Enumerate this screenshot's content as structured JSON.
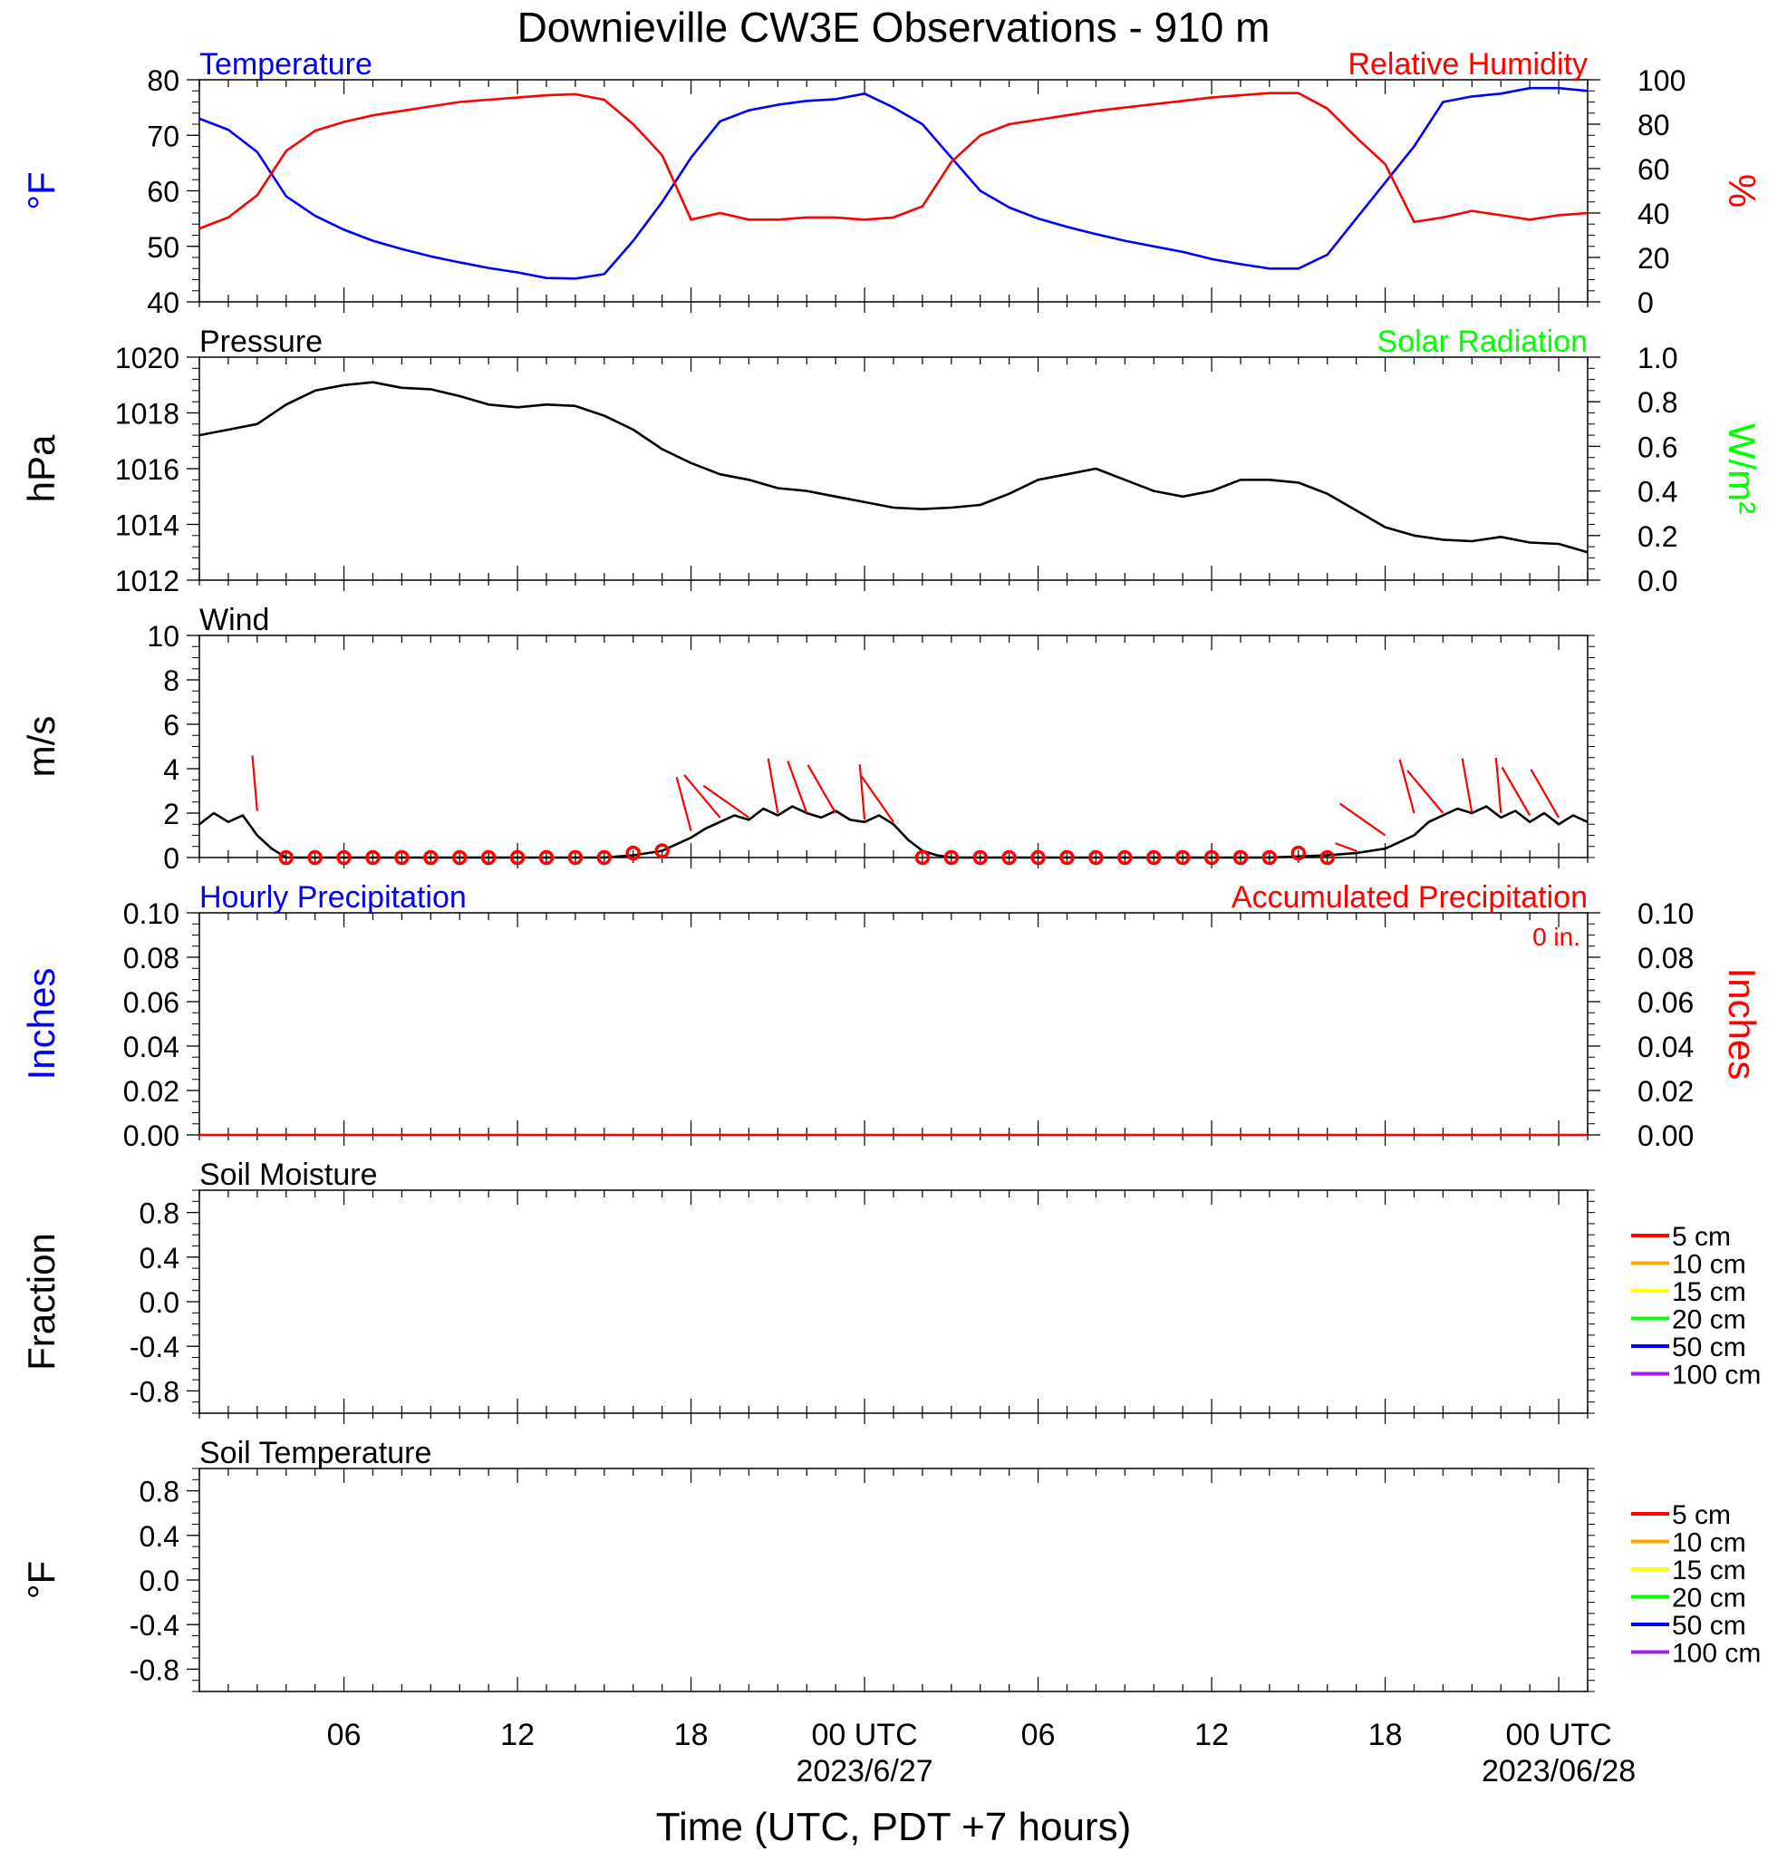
{
  "chart_data": {
    "type": "line",
    "title": "Downieville CW3E Observations - 910 m",
    "xlabel": "Time (UTC, PDT +7 hours)",
    "x_ticks": [
      {
        "hour": 6,
        "label": "06",
        "date": ""
      },
      {
        "hour": 12,
        "label": "12",
        "date": ""
      },
      {
        "hour": 18,
        "label": "18",
        "date": ""
      },
      {
        "hour": 24,
        "label": "00 UTC",
        "date": "2023/6/27"
      },
      {
        "hour": 30,
        "label": "06",
        "date": ""
      },
      {
        "hour": 36,
        "label": "12",
        "date": ""
      },
      {
        "hour": 42,
        "label": "18",
        "date": ""
      },
      {
        "hour": 48,
        "label": "00 UTC",
        "date": "2023/06/28"
      }
    ],
    "x_range_hours": [
      1,
      49
    ],
    "panels": [
      {
        "id": "temp_rh",
        "left_title": "Temperature",
        "left_title_color": "#0000ff",
        "right_title": "Relative Humidity",
        "right_title_color": "#ff0000",
        "ylabel": "°F",
        "ylabel_color": "#0000ff",
        "ylim": [
          40,
          80
        ],
        "yticks": [
          "40",
          "50",
          "60",
          "70",
          "80"
        ],
        "ylabel_right": "%",
        "ylabel_right_color": "#ff0000",
        "ylim_right": [
          0,
          100
        ],
        "yticks_right": [
          "0",
          "20",
          "40",
          "60",
          "80",
          "100"
        ],
        "series": [
          {
            "name": "Temperature",
            "color": "#0000ff",
            "axis": "left",
            "x": [
              1,
              2,
              3,
              4,
              5,
              6,
              7,
              8,
              9,
              10,
              11,
              12,
              13,
              14,
              15,
              16,
              17,
              18,
              19,
              20,
              21,
              22,
              23,
              24,
              25,
              26,
              27,
              28,
              29,
              30,
              31,
              32,
              33,
              34,
              35,
              36,
              37,
              38,
              39,
              40,
              41,
              42,
              43,
              44,
              45,
              46,
              47,
              48,
              49
            ],
            "y": [
              73,
              71,
              67,
              59,
              55.5,
              53,
              51,
              49.5,
              48.2,
              47.1,
              46.1,
              45.3,
              44.3,
              44.2,
              45,
              51,
              58,
              66,
              72.5,
              74.5,
              75.5,
              76.2,
              76.5,
              77.5,
              75,
              72,
              66,
              60,
              57,
              55,
              53.5,
              52.2,
              51,
              50,
              49,
              47.7,
              46.8,
              46,
              46,
              48.5,
              55,
              61.5,
              68,
              76,
              77,
              77.5,
              78.5,
              78.5,
              78
            ]
          },
          {
            "name": "Relative Humidity",
            "color": "#ff0000",
            "axis": "right",
            "x": [
              1,
              2,
              3,
              4,
              5,
              6,
              7,
              8,
              9,
              10,
              11,
              12,
              13,
              14,
              15,
              16,
              17,
              18,
              19,
              20,
              21,
              22,
              23,
              24,
              25,
              26,
              27,
              28,
              29,
              30,
              31,
              32,
              33,
              34,
              35,
              36,
              37,
              38,
              39,
              40,
              41,
              42,
              43,
              44,
              45,
              46,
              47,
              48,
              49
            ],
            "y": [
              33,
              38,
              48,
              68,
              77,
              81,
              84,
              86,
              88,
              90,
              91,
              92,
              93,
              93.5,
              91,
              80,
              66,
              37,
              40,
              37,
              37,
              38,
              38,
              37,
              38,
              43,
              63,
              75,
              80,
              82,
              84,
              86,
              87.5,
              89,
              90.5,
              92,
              93,
              94,
              94,
              87,
              74,
              62,
              36,
              38,
              41,
              39,
              37,
              39,
              40
            ]
          }
        ]
      },
      {
        "id": "pressure",
        "left_title": "Pressure",
        "left_title_color": "#000000",
        "right_title": "Solar Radiation",
        "right_title_color": "#00ff00",
        "ylabel": "hPa",
        "ylabel_color": "#000000",
        "ylim": [
          1012,
          1020
        ],
        "yticks": [
          "1012",
          "1014",
          "1016",
          "1018",
          "1020"
        ],
        "ylabel_right": "W/m²",
        "ylabel_right_color": "#00ff00",
        "ylim_right": [
          0.0,
          1.0
        ],
        "yticks_right": [
          "0.0",
          "0.2",
          "0.4",
          "0.6",
          "0.8",
          "1.0"
        ],
        "series": [
          {
            "name": "Pressure",
            "color": "#000000",
            "axis": "left",
            "x": [
              1,
              2,
              3,
              4,
              5,
              6,
              7,
              8,
              9,
              10,
              11,
              12,
              13,
              14,
              15,
              16,
              17,
              18,
              19,
              20,
              21,
              22,
              23,
              24,
              25,
              26,
              27,
              28,
              29,
              30,
              31,
              32,
              33,
              34,
              35,
              36,
              37,
              38,
              39,
              40,
              41,
              42,
              43,
              44,
              45,
              46,
              47,
              48,
              49
            ],
            "y": [
              1017.2,
              1017.4,
              1017.6,
              1018.3,
              1018.8,
              1019,
              1019.1,
              1018.9,
              1018.85,
              1018.6,
              1018.3,
              1018.2,
              1018.3,
              1018.25,
              1017.9,
              1017.4,
              1016.7,
              1016.2,
              1015.8,
              1015.6,
              1015.3,
              1015.2,
              1015.0,
              1014.8,
              1014.6,
              1014.55,
              1014.6,
              1014.7,
              1015.1,
              1015.6,
              1015.8,
              1016.0,
              1015.6,
              1015.2,
              1015.0,
              1015.2,
              1015.6,
              1015.6,
              1015.5,
              1015.1,
              1014.5,
              1013.9,
              1013.6,
              1013.45,
              1013.4,
              1013.55,
              1013.35,
              1013.3,
              1013.0
            ]
          }
        ]
      },
      {
        "id": "wind",
        "left_title": "Wind",
        "left_title_color": "#000000",
        "right_title": "",
        "right_title_color": "#ff0000",
        "ylabel": "m/s",
        "ylabel_color": "#000000",
        "ylim": [
          0,
          10
        ],
        "yticks": [
          "0",
          "2",
          "4",
          "6",
          "8",
          "10"
        ],
        "series": [
          {
            "name": "Wind Speed",
            "color": "#000000",
            "axis": "left",
            "x": [
              1,
              1.5,
              2,
              2.5,
              3,
              3.5,
              4,
              4.5,
              5,
              6,
              7,
              8,
              9,
              10,
              11,
              12,
              13,
              14,
              15,
              16,
              16.5,
              17,
              17.5,
              18,
              18.5,
              19,
              19.5,
              20,
              20.5,
              21,
              21.5,
              22,
              22.5,
              23,
              23.5,
              24,
              24.5,
              25,
              25.5,
              26,
              26.5,
              27,
              28,
              29,
              30,
              31,
              32,
              33,
              34,
              35,
              36,
              37,
              38,
              39,
              40,
              41,
              41.5,
              42,
              42.5,
              43,
              43.5,
              44,
              44.5,
              45,
              45.5,
              46,
              46.5,
              47,
              47.5,
              48,
              48.5,
              49
            ],
            "y": [
              1.5,
              2.0,
              1.6,
              1.9,
              1.0,
              0.4,
              0.0,
              0.0,
              0.0,
              0.0,
              0.0,
              0.0,
              0.0,
              0.0,
              0.0,
              0.0,
              0.0,
              0.0,
              0.0,
              0.1,
              0.2,
              0.3,
              0.6,
              0.9,
              1.3,
              1.6,
              1.9,
              1.7,
              2.2,
              1.9,
              2.3,
              2.0,
              1.8,
              2.1,
              1.7,
              1.6,
              1.9,
              1.5,
              0.8,
              0.3,
              0.1,
              0.0,
              0.0,
              0.0,
              0.0,
              0.0,
              0.0,
              0.0,
              0.0,
              0.0,
              0.0,
              0.0,
              0.0,
              0.05,
              0.1,
              0.2,
              0.3,
              0.4,
              0.7,
              1.0,
              1.6,
              1.9,
              2.2,
              2.0,
              2.3,
              1.8,
              2.1,
              1.6,
              2.0,
              1.5,
              1.9,
              1.6
            ]
          }
        ],
        "barbs": [
          {
            "hour": 3,
            "speed": 2.1,
            "len_m": 2.5,
            "dir_deg": 355
          },
          {
            "hour": 4,
            "speed": 0
          },
          {
            "hour": 5,
            "speed": 0
          },
          {
            "hour": 6,
            "speed": 0
          },
          {
            "hour": 7,
            "speed": 0
          },
          {
            "hour": 8,
            "speed": 0
          },
          {
            "hour": 9,
            "speed": 0
          },
          {
            "hour": 10,
            "speed": 0
          },
          {
            "hour": 11,
            "speed": 0
          },
          {
            "hour": 12,
            "speed": 0
          },
          {
            "hour": 13,
            "speed": 0
          },
          {
            "hour": 14,
            "speed": 0
          },
          {
            "hour": 15,
            "speed": 0
          },
          {
            "hour": 16,
            "speed": 0.2
          },
          {
            "hour": 17,
            "speed": 0.3
          },
          {
            "hour": 18,
            "speed": 1.2,
            "len_m": 2.5,
            "dir_deg": 345
          },
          {
            "hour": 19,
            "speed": 1.8,
            "len_m": 2.5,
            "dir_deg": 320
          },
          {
            "hour": 20,
            "speed": 1.8,
            "len_m": 2.5,
            "dir_deg": 305
          },
          {
            "hour": 21,
            "speed": 2.0,
            "len_m": 2.5,
            "dir_deg": 350
          },
          {
            "hour": 22,
            "speed": 2.0,
            "len_m": 2.5,
            "dir_deg": 340
          },
          {
            "hour": 23,
            "speed": 2.0,
            "len_m": 2.5,
            "dir_deg": 330
          },
          {
            "hour": 24,
            "speed": 1.7,
            "len_m": 2.5,
            "dir_deg": 355
          },
          {
            "hour": 25,
            "speed": 1.6,
            "len_m": 2.5,
            "dir_deg": 325
          },
          {
            "hour": 26,
            "speed": 0
          },
          {
            "hour": 27,
            "speed": 0
          },
          {
            "hour": 28,
            "speed": 0
          },
          {
            "hour": 29,
            "speed": 0
          },
          {
            "hour": 30,
            "speed": 0
          },
          {
            "hour": 31,
            "speed": 0
          },
          {
            "hour": 32,
            "speed": 0
          },
          {
            "hour": 33,
            "speed": 0
          },
          {
            "hour": 34,
            "speed": 0
          },
          {
            "hour": 35,
            "speed": 0
          },
          {
            "hour": 36,
            "speed": 0
          },
          {
            "hour": 37,
            "speed": 0
          },
          {
            "hour": 38,
            "speed": 0
          },
          {
            "hour": 39,
            "speed": 0.2
          },
          {
            "hour": 40,
            "speed": 0
          },
          {
            "hour": 41,
            "speed": 0.3,
            "len_m": 1.0,
            "dir_deg": 290
          },
          {
            "hour": 42,
            "speed": 1.0,
            "len_m": 2.5,
            "dir_deg": 305
          },
          {
            "hour": 43,
            "speed": 2.0,
            "len_m": 2.5,
            "dir_deg": 345
          },
          {
            "hour": 44,
            "speed": 2.0,
            "len_m": 2.5,
            "dir_deg": 320
          },
          {
            "hour": 45,
            "speed": 2.0,
            "len_m": 2.5,
            "dir_deg": 350
          },
          {
            "hour": 46,
            "speed": 2.0,
            "len_m": 2.5,
            "dir_deg": 355
          },
          {
            "hour": 47,
            "speed": 1.9,
            "len_m": 2.5,
            "dir_deg": 330
          },
          {
            "hour": 48,
            "speed": 1.8,
            "len_m": 2.5,
            "dir_deg": 330
          }
        ]
      },
      {
        "id": "precip",
        "left_title": "Hourly Precipitation",
        "left_title_color": "#0000ff",
        "right_title": "Accumulated Precipitation",
        "right_title_color": "#ff0000",
        "annotation": "0 in.",
        "ylabel": "Inches",
        "ylabel_color": "#0000ff",
        "ylim": [
          0,
          0.1
        ],
        "yticks": [
          "0.00",
          "0.02",
          "0.04",
          "0.06",
          "0.08",
          "0.10"
        ],
        "ylabel_right": "Inches",
        "ylabel_right_color": "#ff0000",
        "ylim_right": [
          0,
          0.1
        ],
        "yticks_right": [
          "0.00",
          "0.02",
          "0.04",
          "0.06",
          "0.08",
          "0.10"
        ],
        "series": [
          {
            "name": "Accumulated Precipitation",
            "color": "#ff0000",
            "axis": "right",
            "x": [
              1,
              49
            ],
            "y": [
              0,
              0
            ]
          }
        ]
      },
      {
        "id": "soil_moisture",
        "left_title": "Soil Moisture",
        "left_title_color": "#000000",
        "ylabel": "Fraction",
        "ylabel_color": "#000000",
        "ylim": [
          -1,
          1
        ],
        "yticks": [
          "-0.8",
          "-0.4",
          "0.0",
          "0.4",
          "0.8"
        ],
        "legend": [
          {
            "label": "5 cm",
            "color": "#ff0000"
          },
          {
            "label": "10 cm",
            "color": "#ffa500"
          },
          {
            "label": "15 cm",
            "color": "#ffff00"
          },
          {
            "label": "20 cm",
            "color": "#00ff00"
          },
          {
            "label": "50 cm",
            "color": "#0000ff"
          },
          {
            "label": "100 cm",
            "color": "#a020f0"
          }
        ],
        "series": []
      },
      {
        "id": "soil_temp",
        "left_title": "Soil Temperature",
        "left_title_color": "#000000",
        "ylabel": "°F",
        "ylabel_color": "#000000",
        "ylim": [
          -1,
          1
        ],
        "yticks": [
          "-0.8",
          "-0.4",
          "0.0",
          "0.4",
          "0.8"
        ],
        "legend": [
          {
            "label": "5 cm",
            "color": "#ff0000"
          },
          {
            "label": "10 cm",
            "color": "#ffa500"
          },
          {
            "label": "15 cm",
            "color": "#ffff00"
          },
          {
            "label": "20 cm",
            "color": "#00ff00"
          },
          {
            "label": "50 cm",
            "color": "#0000ff"
          },
          {
            "label": "100 cm",
            "color": "#a020f0"
          }
        ],
        "series": []
      }
    ]
  }
}
